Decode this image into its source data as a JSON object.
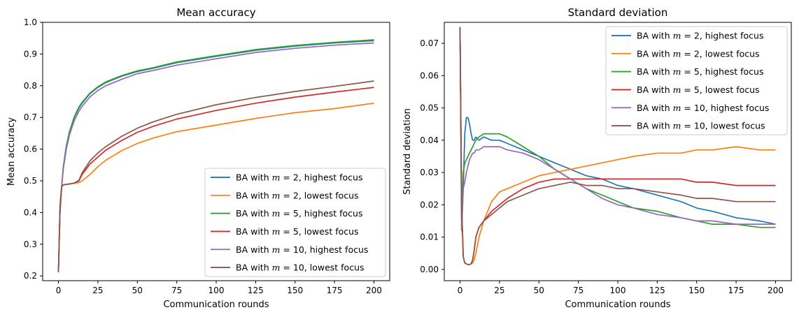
{
  "chart_data": [
    {
      "type": "line",
      "title": "Mean accuracy",
      "xlabel": "Communication rounds",
      "ylabel": "Mean accuracy",
      "xlim": [
        -10,
        210
      ],
      "ylim": [
        0.185,
        1.0
      ],
      "xticks": [
        0,
        25,
        50,
        75,
        100,
        125,
        150,
        175,
        200
      ],
      "yticks": [
        0.2,
        0.3,
        0.4,
        0.5,
        0.6,
        0.7,
        0.8,
        0.9,
        1.0
      ],
      "ytick_labels": [
        "0.2",
        "0.3",
        "0.4",
        "0.5",
        "0.6",
        "0.7",
        "0.8",
        "0.9",
        "1.0"
      ],
      "legend_loc": "lower-right",
      "x": [
        0,
        1,
        2,
        3,
        5,
        7,
        10,
        13,
        15,
        20,
        25,
        30,
        40,
        50,
        60,
        75,
        100,
        125,
        150,
        175,
        200
      ],
      "series": [
        {
          "name": "BA with m = 2, highest focus",
          "color": "#1f77b4",
          "values": [
            0.212,
            0.4,
            0.48,
            0.54,
            0.61,
            0.655,
            0.7,
            0.73,
            0.745,
            0.775,
            0.795,
            0.81,
            0.83,
            0.845,
            0.855,
            0.873,
            0.893,
            0.912,
            0.925,
            0.935,
            0.942
          ]
        },
        {
          "name": "BA with m = 2, lowest focus",
          "color": "#ff7f0e",
          "values": [
            0.212,
            0.42,
            0.482,
            0.487,
            0.489,
            0.49,
            0.492,
            0.495,
            0.5,
            0.52,
            0.545,
            0.565,
            0.595,
            0.618,
            0.635,
            0.655,
            0.676,
            0.697,
            0.715,
            0.728,
            0.745
          ]
        },
        {
          "name": "BA with m = 5, highest focus",
          "color": "#2ca02c",
          "values": [
            0.212,
            0.4,
            0.48,
            0.54,
            0.61,
            0.655,
            0.702,
            0.733,
            0.748,
            0.777,
            0.797,
            0.812,
            0.832,
            0.847,
            0.857,
            0.875,
            0.895,
            0.914,
            0.927,
            0.937,
            0.945
          ]
        },
        {
          "name": "BA with m = 5, lowest focus",
          "color": "#d62728",
          "values": [
            0.212,
            0.42,
            0.482,
            0.487,
            0.489,
            0.49,
            0.493,
            0.5,
            0.52,
            0.553,
            0.575,
            0.597,
            0.627,
            0.653,
            0.672,
            0.695,
            0.722,
            0.745,
            0.764,
            0.78,
            0.795
          ]
        },
        {
          "name": "BA with m = 10, highest focus",
          "color": "#9467bd",
          "values": [
            0.212,
            0.4,
            0.478,
            0.535,
            0.6,
            0.645,
            0.69,
            0.72,
            0.735,
            0.765,
            0.785,
            0.8,
            0.82,
            0.838,
            0.848,
            0.865,
            0.885,
            0.905,
            0.918,
            0.928,
            0.935
          ]
        },
        {
          "name": "BA with m = 10, lowest focus",
          "color": "#8c564b",
          "values": [
            0.212,
            0.42,
            0.482,
            0.487,
            0.489,
            0.49,
            0.493,
            0.502,
            0.525,
            0.563,
            0.588,
            0.608,
            0.64,
            0.666,
            0.686,
            0.71,
            0.74,
            0.763,
            0.782,
            0.798,
            0.815
          ]
        }
      ]
    },
    {
      "type": "line",
      "title": "Standard deviation",
      "xlabel": "Communication rounds",
      "ylabel": "Standard deviation",
      "xlim": [
        -10,
        210
      ],
      "ylim": [
        -0.0035,
        0.0765
      ],
      "xticks": [
        0,
        25,
        50,
        75,
        100,
        125,
        150,
        175,
        200
      ],
      "yticks": [
        0.0,
        0.01,
        0.02,
        0.03,
        0.04,
        0.05,
        0.06,
        0.07
      ],
      "ytick_labels": [
        "0.00",
        "0.01",
        "0.02",
        "0.03",
        "0.04",
        "0.05",
        "0.06",
        "0.07"
      ],
      "legend_loc": "upper-right",
      "x": [
        0,
        1,
        2,
        3,
        4,
        5,
        6,
        7,
        8,
        9,
        10,
        12,
        15,
        20,
        25,
        30,
        40,
        50,
        60,
        70,
        80,
        90,
        100,
        110,
        125,
        140,
        150,
        160,
        175,
        190,
        200
      ],
      "series": [
        {
          "name": "BA with m = 2, highest focus",
          "color": "#1f77b4",
          "values": [
            0.075,
            0.012,
            0.025,
            0.042,
            0.047,
            0.047,
            0.045,
            0.042,
            0.04,
            0.04,
            0.041,
            0.04,
            0.041,
            0.04,
            0.04,
            0.039,
            0.037,
            0.035,
            0.033,
            0.031,
            0.029,
            0.028,
            0.026,
            0.025,
            0.023,
            0.021,
            0.019,
            0.018,
            0.016,
            0.015,
            0.014
          ]
        },
        {
          "name": "BA with m = 2, lowest focus",
          "color": "#ff7f0e",
          "values": [
            0.075,
            0.02,
            0.004,
            0.002,
            0.0017,
            0.0015,
            0.0015,
            0.0017,
            0.002,
            0.003,
            0.005,
            0.01,
            0.015,
            0.021,
            0.024,
            0.025,
            0.027,
            0.029,
            0.03,
            0.031,
            0.032,
            0.033,
            0.034,
            0.035,
            0.036,
            0.036,
            0.037,
            0.037,
            0.038,
            0.037,
            0.037
          ]
        },
        {
          "name": "BA with m = 5, highest focus",
          "color": "#2ca02c",
          "values": [
            0.075,
            0.015,
            0.03,
            0.033,
            0.034,
            0.035,
            0.036,
            0.037,
            0.038,
            0.039,
            0.04,
            0.041,
            0.042,
            0.042,
            0.042,
            0.041,
            0.038,
            0.035,
            0.031,
            0.028,
            0.025,
            0.023,
            0.021,
            0.019,
            0.018,
            0.016,
            0.015,
            0.014,
            0.014,
            0.013,
            0.013
          ]
        },
        {
          "name": "BA with m = 5, lowest focus",
          "color": "#d62728",
          "values": [
            0.075,
            0.02,
            0.004,
            0.002,
            0.0017,
            0.0015,
            0.0015,
            0.0017,
            0.003,
            0.006,
            0.01,
            0.013,
            0.015,
            0.018,
            0.02,
            0.022,
            0.025,
            0.027,
            0.028,
            0.028,
            0.028,
            0.028,
            0.028,
            0.028,
            0.028,
            0.028,
            0.027,
            0.027,
            0.026,
            0.026,
            0.026
          ]
        },
        {
          "name": "BA with m = 10, highest focus",
          "color": "#9467bd",
          "values": [
            0.075,
            0.012,
            0.025,
            0.027,
            0.03,
            0.032,
            0.034,
            0.035,
            0.036,
            0.036,
            0.037,
            0.037,
            0.038,
            0.038,
            0.038,
            0.037,
            0.036,
            0.034,
            0.031,
            0.028,
            0.025,
            0.022,
            0.02,
            0.019,
            0.017,
            0.016,
            0.015,
            0.015,
            0.014,
            0.014,
            0.014
          ]
        },
        {
          "name": "BA with m = 10, lowest focus",
          "color": "#8c564b",
          "values": [
            0.075,
            0.02,
            0.004,
            0.002,
            0.0017,
            0.0015,
            0.0015,
            0.0017,
            0.003,
            0.006,
            0.01,
            0.013,
            0.015,
            0.017,
            0.019,
            0.021,
            0.023,
            0.025,
            0.026,
            0.027,
            0.026,
            0.026,
            0.025,
            0.025,
            0.024,
            0.023,
            0.022,
            0.022,
            0.021,
            0.021,
            0.021
          ]
        }
      ]
    }
  ]
}
